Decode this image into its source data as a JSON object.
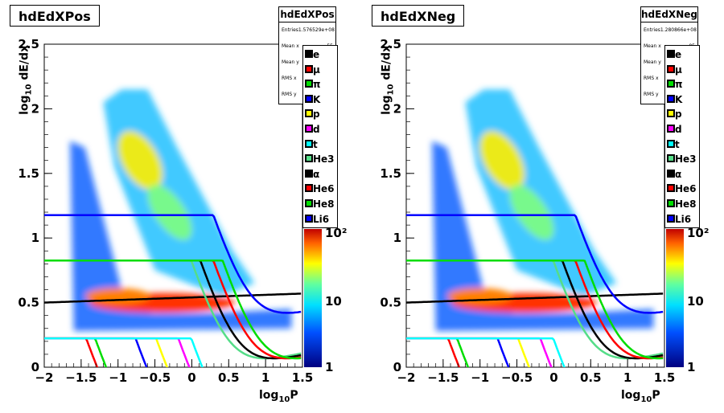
{
  "chart_data": [
    {
      "type": "heatmap",
      "title": "hdEdXPos",
      "xlabel": "log10P",
      "ylabel": "log10 dE/dx",
      "xlim": [
        -2,
        1.5
      ],
      "ylim": [
        0,
        2.5
      ],
      "x_ticks": [
        "−2",
        "−1.5",
        "−1",
        "−0.5",
        "0",
        "0.5",
        "1",
        "1.5"
      ],
      "y_ticks": [
        "0",
        "0.5",
        "1",
        "1.5",
        "2",
        "2.5"
      ],
      "z_scale": "log",
      "z_ticks": [
        "1",
        "10",
        "10²"
      ],
      "stats": {
        "title": "hdEdXPos",
        "rows": [
          [
            "Entries",
            "1.576529e+08"
          ],
          [
            "Mean x",
            "55"
          ],
          [
            "Mean y",
            "97"
          ],
          [
            "RMS x",
            "27"
          ],
          [
            "RMS y",
            "68"
          ]
        ]
      },
      "legend": [
        "e",
        "μ",
        "π",
        "K",
        "p",
        "d",
        "t",
        "He3",
        "α",
        "He6",
        "He8",
        "Li6"
      ]
    },
    {
      "type": "heatmap",
      "title": "hdEdXNeg",
      "xlabel": "log10P",
      "ylabel": "log10 dE/dx",
      "xlim": [
        -2,
        1.5
      ],
      "ylim": [
        0,
        2.5
      ],
      "x_ticks": [
        "−2",
        "−1.5",
        "−1",
        "−0.5",
        "0",
        "0.5",
        "1",
        "1.5"
      ],
      "y_ticks": [
        "0",
        "0.5",
        "1",
        "1.5",
        "2",
        "2.5"
      ],
      "z_scale": "log",
      "z_ticks": [
        "1",
        "10",
        "10²"
      ],
      "stats": {
        "title": "hdEdXNeg",
        "rows": [
          [
            "Entries",
            "1.280866e+08"
          ],
          [
            "Mean x",
            "05"
          ],
          [
            "Mean y",
            "71"
          ],
          [
            "RMS x",
            "33"
          ],
          [
            "RMS y",
            "63"
          ]
        ]
      },
      "legend": [
        "e",
        "μ",
        "π",
        "K",
        "p",
        "d",
        "t",
        "He3",
        "α",
        "He6",
        "He8",
        "Li6"
      ]
    }
  ],
  "curves": [
    {
      "name": "e",
      "color": "#000000"
    },
    {
      "name": "μ",
      "color": "#ff0000"
    },
    {
      "name": "π",
      "color": "#00dd00"
    },
    {
      "name": "K",
      "color": "#0000ff"
    },
    {
      "name": "p",
      "color": "#ffff00"
    },
    {
      "name": "d",
      "color": "#ff00ff"
    },
    {
      "name": "t",
      "color": "#00ffff"
    },
    {
      "name": "He3",
      "color": "#55dd88"
    },
    {
      "name": "α",
      "color": "#000000"
    },
    {
      "name": "He6",
      "color": "#ff0000"
    },
    {
      "name": "He8",
      "color": "#00dd00"
    },
    {
      "name": "Li6",
      "color": "#0000ff"
    }
  ],
  "labels": {
    "ylabel_main": "log",
    "ylabel_sub": "10",
    "ylabel_rest": " dE/dx",
    "xlabel_main": "log",
    "xlabel_sub": "10",
    "xlabel_rest": "P"
  }
}
